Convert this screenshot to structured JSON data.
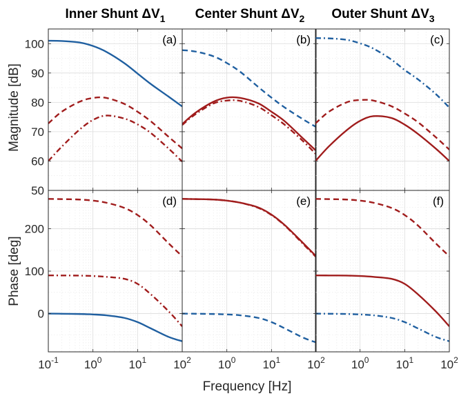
{
  "column_titles": [
    {
      "main": "Inner Shunt ΔV",
      "sub": "1"
    },
    {
      "main": "Center Shunt ΔV",
      "sub": "2"
    },
    {
      "main": "Outer Shunt ΔV",
      "sub": "3"
    }
  ],
  "ylabel_magnitude": "Magnitude [dB]",
  "ylabel_phase": "Phase [deg]",
  "xlabel": "Frequency [Hz]",
  "colors": {
    "blue": "#1f5fa0",
    "red": "#a01c1c"
  },
  "chart_data": {
    "type": "line",
    "x_scale": "log",
    "xlim": [
      0.1,
      100
    ],
    "x_ticks": [
      {
        "base": "10",
        "exp": "-1"
      },
      {
        "base": "10",
        "exp": "0"
      },
      {
        "base": "10",
        "exp": "1"
      },
      {
        "base": "10",
        "exp": "2"
      }
    ],
    "x": [
      0.1,
      0.2,
      0.5,
      1,
      2,
      5,
      10,
      20,
      50,
      100
    ],
    "grid": true,
    "rows": [
      {
        "quantity": "magnitude",
        "ylim": [
          50,
          105
        ],
        "yticks": [
          "50",
          "60",
          "70",
          "80",
          "90",
          "100"
        ]
      },
      {
        "quantity": "phase",
        "ylim": [
          -90,
          290
        ],
        "yticks": [
          "0",
          "100",
          "200"
        ]
      }
    ],
    "panels": [
      {
        "label": "(a)",
        "row": 0,
        "col": 0,
        "series": [
          {
            "style": "solid",
            "color": "blue",
            "values": [
              101,
              100.9,
              100.4,
              99.2,
              97.2,
              93.4,
              89.8,
              86.2,
              81.9,
              78.6
            ]
          },
          {
            "style": "dashed",
            "color": "red",
            "values": [
              72.8,
              76.8,
              80.2,
              81.5,
              81.5,
              79.5,
              76.8,
              73.5,
              68.2,
              64.3
            ]
          },
          {
            "style": "dashdot",
            "color": "red",
            "values": [
              60,
              64.9,
              70.7,
              74,
              75.5,
              74.5,
              72.5,
              69.5,
              64.2,
              59.8
            ]
          }
        ]
      },
      {
        "label": "(b)",
        "row": 0,
        "col": 1,
        "series": [
          {
            "style": "dashed",
            "color": "blue",
            "values": [
              97.8,
              97.3,
              95.7,
              93.4,
              90.4,
              85.3,
              81.6,
              78.2,
              74.3,
              71.6
            ]
          },
          {
            "style": "solid",
            "color": "red",
            "values": [
              72.6,
              76.5,
              80.2,
              81.6,
              81.5,
              79.7,
              76.8,
              73.5,
              67.8,
              63.5
            ]
          },
          {
            "style": "dashdot",
            "color": "red",
            "values": [
              72.3,
              76,
              79.6,
              80.6,
              80.5,
              78.5,
              75.6,
              72.3,
              66.9,
              62.3
            ]
          }
        ]
      },
      {
        "label": "(c)",
        "row": 0,
        "col": 2,
        "series": [
          {
            "style": "dashdot",
            "color": "blue",
            "values": [
              101.9,
              101.8,
              101.3,
              100.1,
              98.3,
              94.6,
              91,
              87.8,
              82.8,
              78.2
            ]
          },
          {
            "style": "dashed",
            "color": "red",
            "values": [
              72.8,
              76.8,
              80,
              80.8,
              80.6,
              78.7,
              76.2,
              73.2,
              68.1,
              63.9
            ]
          },
          {
            "style": "solid",
            "color": "red",
            "values": [
              60,
              65,
              70.5,
              73.7,
              75.3,
              74.7,
              72.4,
              69.2,
              64.2,
              60
            ]
          }
        ]
      },
      {
        "label": "(d)",
        "row": 1,
        "col": 0,
        "series": [
          {
            "style": "dashed",
            "color": "red",
            "values": [
              270,
              269.5,
              268.5,
              266,
              261,
              249,
              232,
              207,
              165,
              135
            ]
          },
          {
            "style": "dashdot",
            "color": "red",
            "values": [
              90,
              89.8,
              89.5,
              88.5,
              86.5,
              82,
              70,
              45,
              5,
              -30
            ]
          },
          {
            "style": "solid",
            "color": "blue",
            "values": [
              0,
              -0.3,
              -0.9,
              -2,
              -4,
              -10,
              -20,
              -35,
              -55,
              -65
            ]
          }
        ]
      },
      {
        "label": "(e)",
        "row": 1,
        "col": 1,
        "series": [
          {
            "style": "solid",
            "color": "red",
            "values": [
              270,
              269.5,
              268.5,
              266,
              261,
              250,
              233,
              208,
              167,
              135
            ]
          },
          {
            "style": "dashdot",
            "color": "red",
            "values": [
              270,
              269.5,
              268.5,
              266,
              261,
              249,
              232,
              207,
              165,
              133
            ]
          },
          {
            "style": "dashed",
            "color": "blue",
            "values": [
              0,
              -0.3,
              -0.9,
              -2,
              -4,
              -10,
              -20,
              -35,
              -56,
              -68
            ]
          }
        ]
      },
      {
        "label": "(f)",
        "row": 1,
        "col": 2,
        "series": [
          {
            "style": "dashed",
            "color": "red",
            "values": [
              270,
              269.5,
              268.5,
              266,
              261,
              249,
              232,
              207,
              165,
              135
            ]
          },
          {
            "style": "solid",
            "color": "red",
            "values": [
              90,
              89.8,
              89.5,
              88.5,
              86.5,
              82,
              70,
              45,
              5,
              -30
            ]
          },
          {
            "style": "dashdot",
            "color": "blue",
            "values": [
              0,
              -0.3,
              -0.9,
              -2,
              -4,
              -10,
              -20,
              -35,
              -55,
              -65
            ]
          }
        ]
      }
    ]
  }
}
